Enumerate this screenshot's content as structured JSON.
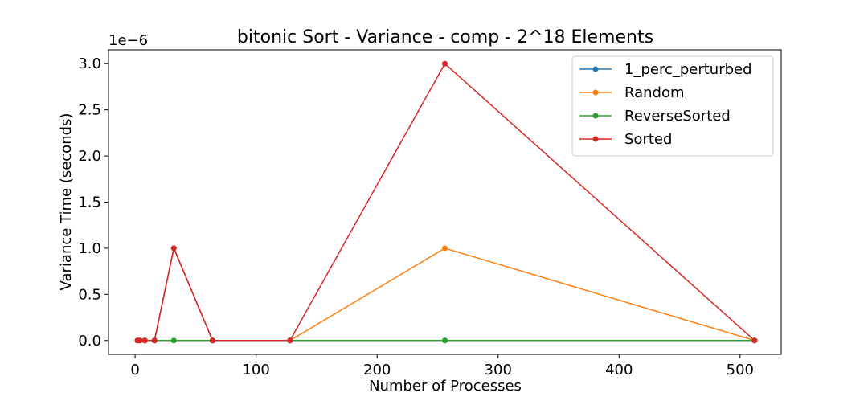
{
  "chart_data": {
    "type": "line",
    "title": "bitonic Sort - Variance - comp - 2^18 Elements",
    "xlabel": "Number of Processes",
    "ylabel": "Variance Time (seconds)",
    "y_offset_label": "1e−6",
    "xlim": [
      -22,
      534
    ],
    "ylim": [
      -0.15,
      3.15
    ],
    "x_ticks": [
      0,
      100,
      200,
      300,
      400,
      500
    ],
    "y_ticks": [
      0.0,
      0.5,
      1.0,
      1.5,
      2.0,
      2.5,
      3.0
    ],
    "y_tick_labels": [
      "0.0",
      "0.5",
      "1.0",
      "1.5",
      "2.0",
      "2.5",
      "3.0"
    ],
    "grid": false,
    "legend_position": "top-right",
    "x": [
      2,
      4,
      8,
      16,
      32,
      64,
      128,
      256,
      512
    ],
    "series": [
      {
        "name": "1_perc_perturbed",
        "color": "#1f77b4",
        "values": [
          0,
          0,
          0,
          0,
          1.0,
          0,
          0,
          0,
          0
        ]
      },
      {
        "name": "Random",
        "color": "#ff7f0e",
        "values": [
          0,
          0,
          0,
          0,
          1.0,
          0,
          0,
          1.0,
          0
        ]
      },
      {
        "name": "ReverseSorted",
        "color": "#2ca02c",
        "values": [
          0,
          0,
          0,
          0,
          0,
          0,
          0,
          0,
          0
        ]
      },
      {
        "name": "Sorted",
        "color": "#d62728",
        "values": [
          0,
          0,
          0,
          0,
          1.0,
          0,
          0,
          3.0,
          0
        ]
      }
    ]
  }
}
